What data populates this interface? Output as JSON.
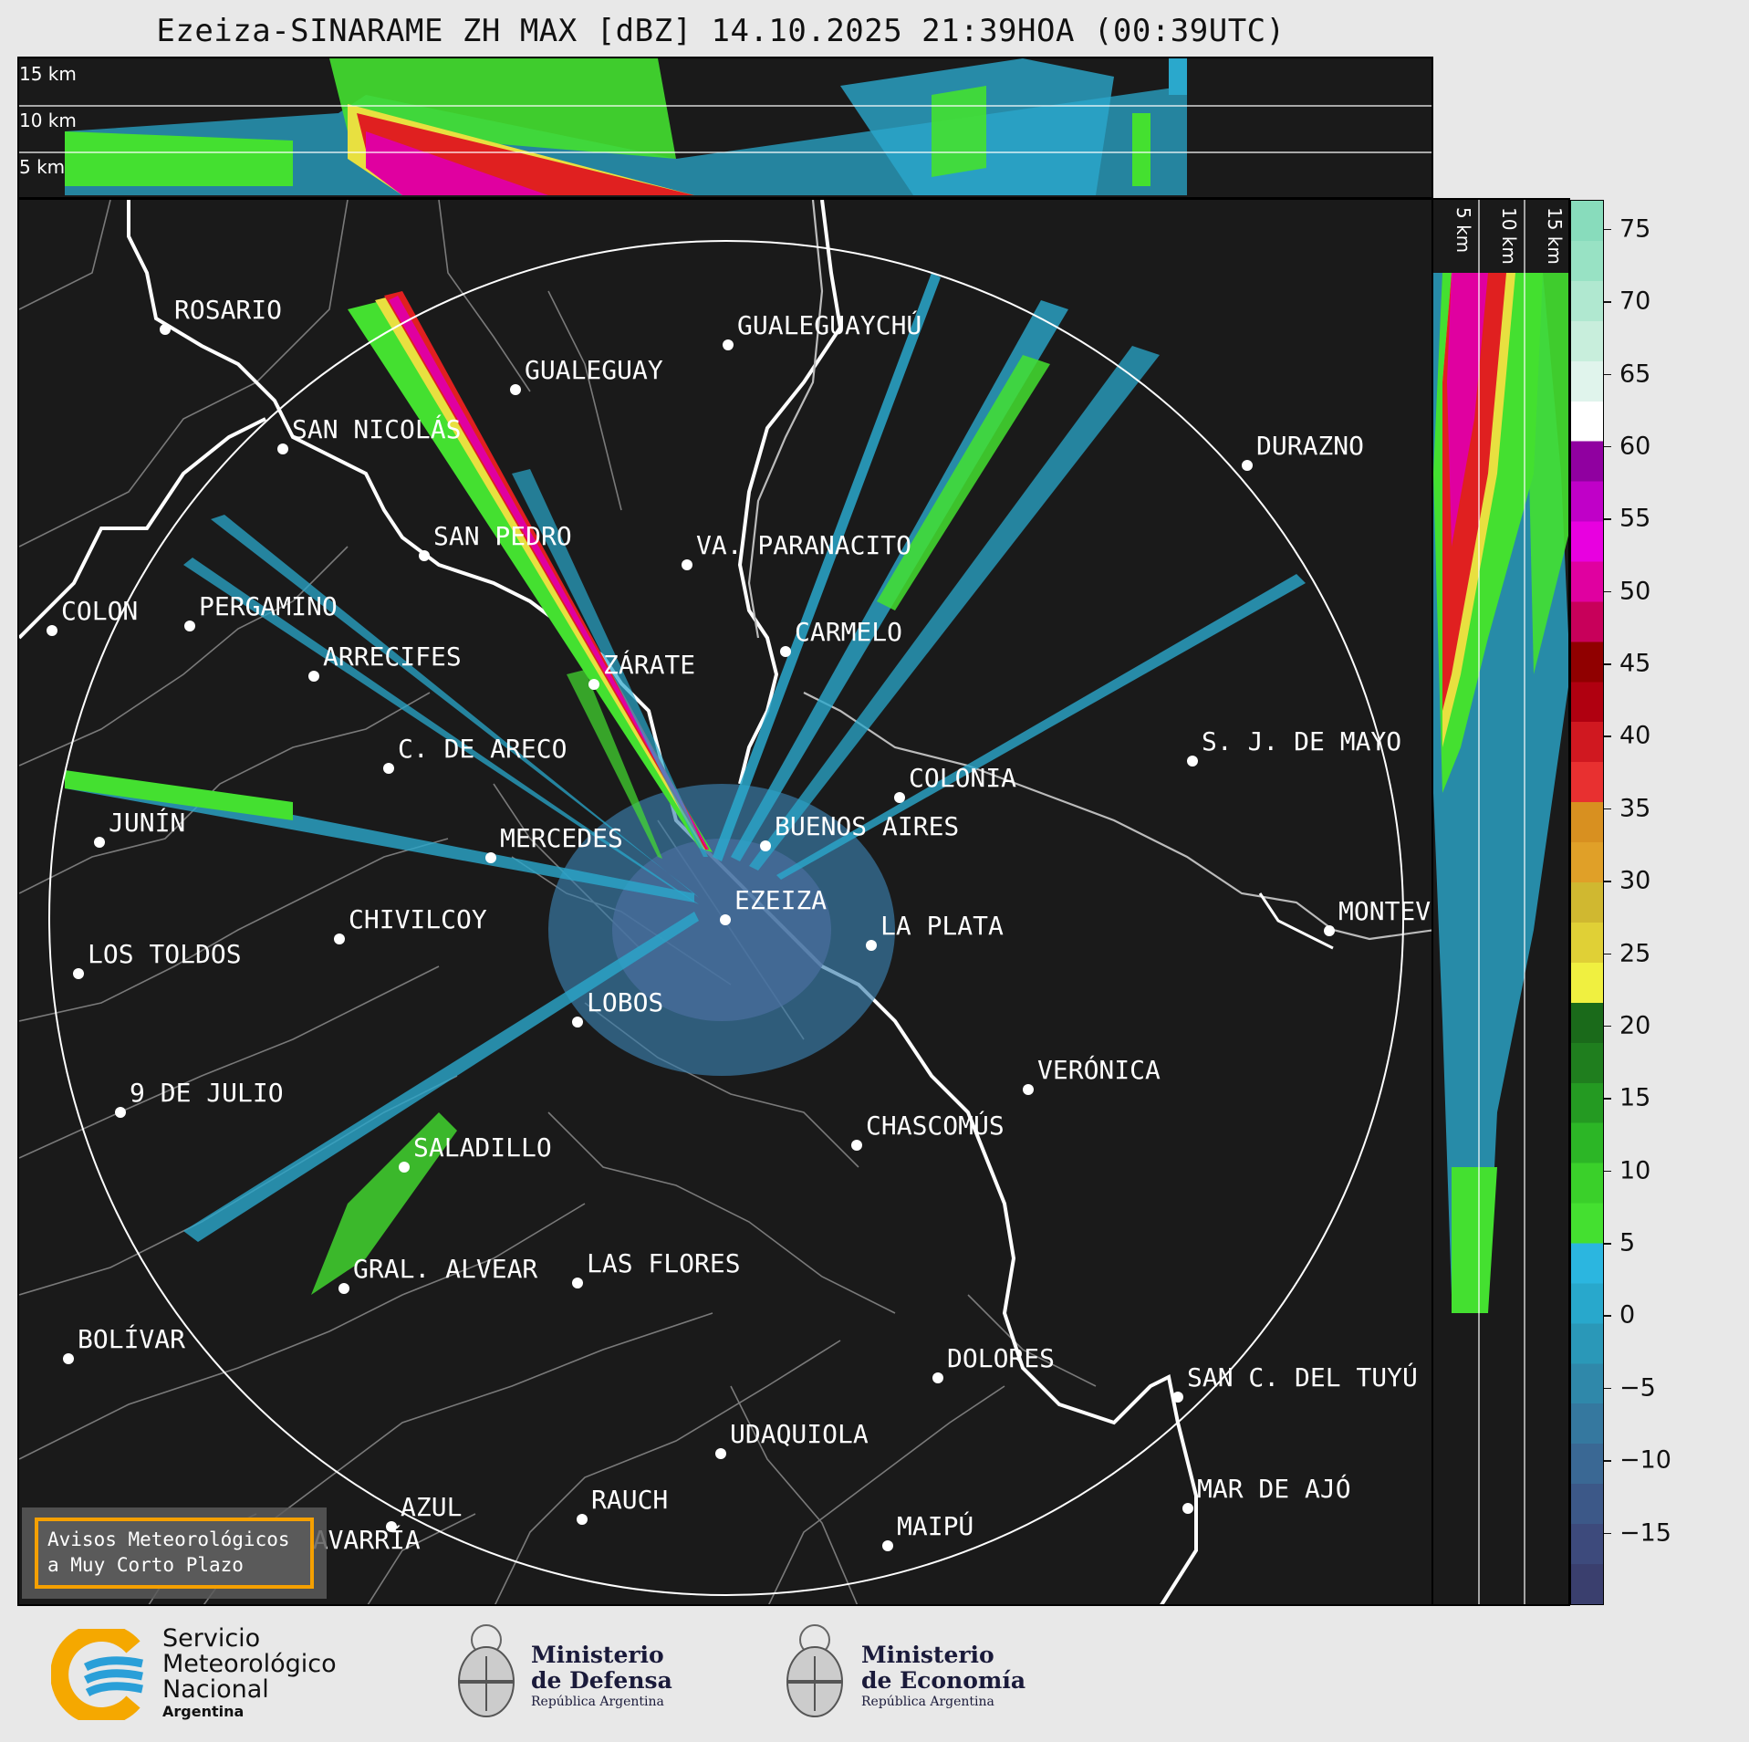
{
  "title": "Ezeiza-SINARAME ZH MAX [dBZ] 14.10.2025 21:39HOA (00:39UTC)",
  "top_panel": {
    "heights": [
      "15 km",
      "10 km",
      "5 km"
    ]
  },
  "side_panel": {
    "heights": [
      "5 km",
      "10 km",
      "15 km"
    ]
  },
  "colorbar": {
    "ticks": [
      "75",
      "70",
      "65",
      "60",
      "55",
      "50",
      "45",
      "40",
      "35",
      "30",
      "25",
      "20",
      "15",
      "10",
      "5",
      "0",
      "−5",
      "−10",
      "−15"
    ],
    "range": [
      -20,
      77
    ],
    "colors": [
      "#3a3f6e",
      "#3d4a7c",
      "#3c5888",
      "#3a6894",
      "#35789f",
      "#2f88aa",
      "#2a98b8",
      "#28a8cc",
      "#2bb6e0",
      "#44e030",
      "#3ad02a",
      "#2cb626",
      "#249a22",
      "#1f7e1e",
      "#1a6a1a",
      "#f0f040",
      "#e0d036",
      "#d0b830",
      "#e0a028",
      "#d89020",
      "#e83030",
      "#d01820",
      "#b00010",
      "#900000",
      "#c8005a",
      "#e000a0",
      "#e800e0",
      "#c000c8",
      "#9000a0",
      "#ffffff",
      "#e0f4ec",
      "#c8eedc",
      "#b0e8d0",
      "#98e2c4",
      "#88dcbc"
    ]
  },
  "cities": [
    {
      "name": "ROSARIO"
    },
    {
      "name": "GUALEGUAYCHÚ"
    },
    {
      "name": "GUALEGUAY"
    },
    {
      "name": "SAN NICOLÁS"
    },
    {
      "name": "DURAZNO"
    },
    {
      "name": "SAN PEDRO"
    },
    {
      "name": "VA. PARANACITO"
    },
    {
      "name": "COLON"
    },
    {
      "name": "PERGAMINO"
    },
    {
      "name": "CARMELO"
    },
    {
      "name": "ARRECIFES"
    },
    {
      "name": "ZÁRATE"
    },
    {
      "name": "S. J. DE MAYO"
    },
    {
      "name": "C. DE ARECO"
    },
    {
      "name": "COLONIA"
    },
    {
      "name": "JUNÍN"
    },
    {
      "name": "BUENOS AIRES"
    },
    {
      "name": "MERCEDES"
    },
    {
      "name": "MONTEV"
    },
    {
      "name": "EZEIZA"
    },
    {
      "name": "CHIVILCOY"
    },
    {
      "name": "LA PLATA"
    },
    {
      "name": "LOS TOLDOS"
    },
    {
      "name": "LOBOS"
    },
    {
      "name": "VERÓNICA"
    },
    {
      "name": "9 DE JULIO"
    },
    {
      "name": "CHASCOMÚS"
    },
    {
      "name": "SALADILLO"
    },
    {
      "name": "GRAL. ALVEAR"
    },
    {
      "name": "LAS FLORES"
    },
    {
      "name": "BOLÍVAR"
    },
    {
      "name": "DOLORES"
    },
    {
      "name": "SAN C. DEL TUYÚ"
    },
    {
      "name": "UDAQUIOLA"
    },
    {
      "name": "MAR DE AJÓ"
    },
    {
      "name": "AZUL"
    },
    {
      "name": "RAUCH"
    },
    {
      "name": "MAIPÚ"
    },
    {
      "name": "OLAVARRÍA"
    }
  ],
  "alert": {
    "line1": "Avisos Meteorológicos",
    "line2": "a Muy Corto Plazo"
  },
  "logos": {
    "smn": {
      "line1": "Servicio",
      "line2": "Meteorológico",
      "line3": "Nacional",
      "line4": "Argentina"
    },
    "defensa": {
      "line1": "Ministerio",
      "line2": "de Defensa",
      "line3": "República Argentina"
    },
    "economia": {
      "line1": "Ministerio",
      "line2": "de Economía",
      "line3": "República Argentina"
    }
  }
}
